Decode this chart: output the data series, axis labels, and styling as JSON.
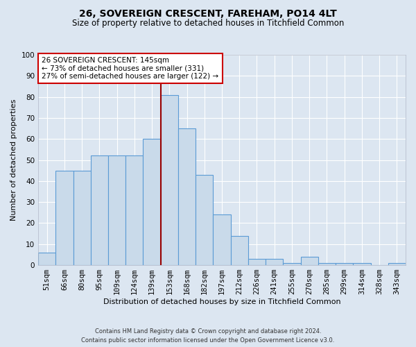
{
  "title1": "26, SOVEREIGN CRESCENT, FAREHAM, PO14 4LT",
  "title2": "Size of property relative to detached houses in Titchfield Common",
  "xlabel": "Distribution of detached houses by size in Titchfield Common",
  "ylabel": "Number of detached properties",
  "footnote1": "Contains HM Land Registry data © Crown copyright and database right 2024.",
  "footnote2": "Contains public sector information licensed under the Open Government Licence v3.0.",
  "categories": [
    "51sqm",
    "66sqm",
    "80sqm",
    "95sqm",
    "109sqm",
    "124sqm",
    "139sqm",
    "153sqm",
    "168sqm",
    "182sqm",
    "197sqm",
    "212sqm",
    "226sqm",
    "241sqm",
    "255sqm",
    "270sqm",
    "285sqm",
    "299sqm",
    "314sqm",
    "328sqm",
    "343sqm"
  ],
  "bar_vals": [
    6,
    45,
    45,
    52,
    52,
    52,
    60,
    81,
    65,
    43,
    24,
    14,
    3,
    3,
    1,
    4,
    1,
    1,
    1,
    0,
    1
  ],
  "bar_color": "#c9daea",
  "bar_edge_color": "#5b9bd5",
  "ref_line_idx": 7,
  "reference_line_color": "#990000",
  "annotation_text": "26 SOVEREIGN CRESCENT: 145sqm\n← 73% of detached houses are smaller (331)\n27% of semi-detached houses are larger (122) →",
  "annotation_box_color": "#ffffff",
  "annotation_box_edge_color": "#cc0000",
  "ylim": [
    0,
    100
  ],
  "yticks": [
    0,
    10,
    20,
    30,
    40,
    50,
    60,
    70,
    80,
    90,
    100
  ],
  "bg_color": "#dce6f1",
  "plot_bg_color": "#dce6f1",
  "grid_color": "#ffffff",
  "title1_fontsize": 10,
  "title2_fontsize": 8.5,
  "xlabel_fontsize": 8,
  "ylabel_fontsize": 8,
  "tick_fontsize": 7.5,
  "footnote_fontsize": 6,
  "annotation_fontsize": 7.5
}
